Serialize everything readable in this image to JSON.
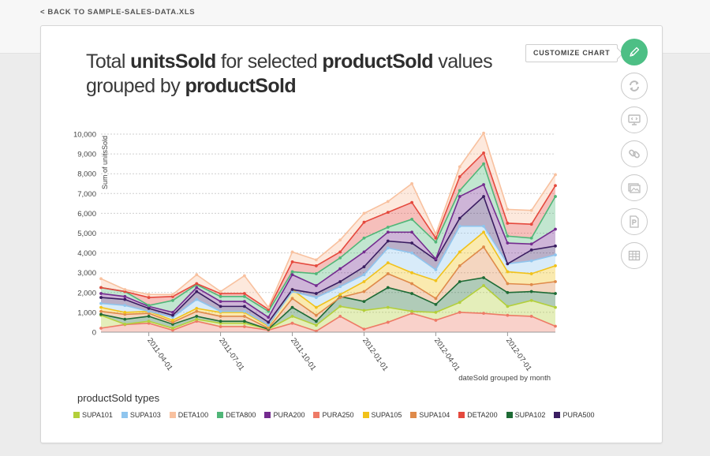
{
  "nav": {
    "back_label": "< BACK TO SAMPLE-SALES-DATA.XLS"
  },
  "title": {
    "p1": "Total ",
    "b1": "unitsSold",
    "p2": " for selected ",
    "b2": "productSold",
    "p3": " values grouped by ",
    "b3": "productSold"
  },
  "toolbar": {
    "customize_label": "CUSTOMIZE CHART",
    "buttons": [
      {
        "icon": "pencil-icon",
        "color": "#4dbf85"
      },
      {
        "icon": "refresh-icon"
      },
      {
        "icon": "embed-icon"
      },
      {
        "icon": "link-icon"
      },
      {
        "icon": "image-icon"
      },
      {
        "icon": "pdf-icon"
      },
      {
        "icon": "table-icon"
      }
    ]
  },
  "chart_data": {
    "type": "area",
    "stacked": true,
    "ylabel": "Sum of unitsSold",
    "xlabel": "dateSold grouped by month",
    "ylim": [
      0,
      10000
    ],
    "yticks": [
      "0",
      "1,000",
      "2,000",
      "3,000",
      "4,000",
      "5,000",
      "6,000",
      "7,000",
      "8,000",
      "9,000",
      "10,000"
    ],
    "xticks": [
      {
        "label": "2011-04-01",
        "index": 2
      },
      {
        "label": "2011-07-01",
        "index": 5
      },
      {
        "label": "2011-10-01",
        "index": 8
      },
      {
        "label": "2012-01-01",
        "index": 11
      },
      {
        "label": "2012-04-01",
        "index": 14
      },
      {
        "label": "2012-07-01",
        "index": 17
      }
    ],
    "grid": true,
    "legend_title": "productSold types",
    "legend_position": "bottom",
    "x": [
      "2011-02",
      "2011-03",
      "2011-04",
      "2011-05",
      "2011-06",
      "2011-07",
      "2011-08",
      "2011-09",
      "2011-10",
      "2011-11",
      "2011-12",
      "2012-01",
      "2012-02",
      "2012-03",
      "2012-04",
      "2012-05",
      "2012-06",
      "2012-07",
      "2012-08",
      "2012-09"
    ],
    "series": [
      {
        "name": "PURA250",
        "color": "#ee7a66",
        "totals": [
          200,
          380,
          450,
          100,
          550,
          280,
          280,
          100,
          450,
          50,
          800,
          150,
          500,
          950,
          600,
          1000,
          950,
          850,
          800,
          300
        ]
      },
      {
        "name": "SUPA101",
        "color": "#b3cf3a",
        "totals": [
          850,
          400,
          550,
          200,
          650,
          450,
          450,
          150,
          800,
          350,
          1300,
          1100,
          1250,
          1050,
          1000,
          1500,
          2350,
          1300,
          1600,
          1250
        ]
      },
      {
        "name": "SUPA102",
        "color": "#1e6b35",
        "totals": [
          900,
          650,
          800,
          400,
          800,
          550,
          550,
          150,
          1250,
          550,
          1800,
          1550,
          2250,
          1950,
          1400,
          2550,
          2750,
          2000,
          2050,
          1950
        ]
      },
      {
        "name": "SUPA104",
        "color": "#df8a4a",
        "totals": [
          1050,
          900,
          950,
          500,
          1050,
          800,
          800,
          200,
          1700,
          850,
          1750,
          2050,
          2950,
          2450,
          1700,
          3350,
          4300,
          2450,
          2400,
          2550
        ]
      },
      {
        "name": "SUPA105",
        "color": "#f1c21a",
        "totals": [
          1250,
          1000,
          1050,
          600,
          1200,
          1000,
          1000,
          300,
          2150,
          1250,
          1900,
          2550,
          3500,
          3000,
          2600,
          4050,
          5050,
          3050,
          2950,
          3350
        ]
      },
      {
        "name": "SUPA103",
        "color": "#8fc5ee",
        "totals": [
          1450,
          1350,
          1050,
          750,
          1650,
          1050,
          1050,
          350,
          2050,
          1750,
          2300,
          2900,
          4250,
          4000,
          3150,
          5350,
          5350,
          3450,
          3600,
          3900
        ]
      },
      {
        "name": "PURA500",
        "color": "#3a1d61",
        "totals": [
          1750,
          1650,
          1200,
          850,
          2050,
          1300,
          1300,
          500,
          2150,
          1950,
          2550,
          3300,
          4600,
          4500,
          3650,
          5750,
          6850,
          3450,
          4150,
          4350
        ]
      },
      {
        "name": "PURA200",
        "color": "#742b8f",
        "totals": [
          1950,
          1800,
          1300,
          1000,
          2250,
          1550,
          1550,
          750,
          2900,
          2350,
          3200,
          4050,
          5050,
          5050,
          3700,
          6850,
          7450,
          4500,
          4450,
          5200
        ]
      },
      {
        "name": "DETA800",
        "color": "#50b678",
        "totals": [
          2250,
          2050,
          1350,
          1600,
          2400,
          1800,
          1800,
          1050,
          3050,
          2950,
          3750,
          4750,
          5300,
          5700,
          4550,
          7150,
          8500,
          4850,
          4750,
          6850
        ]
      },
      {
        "name": "DETA200",
        "color": "#e5493d",
        "totals": [
          2250,
          2050,
          1750,
          1800,
          2450,
          1950,
          1950,
          1150,
          3550,
          3350,
          4050,
          5550,
          6050,
          6550,
          4750,
          7850,
          9050,
          5500,
          5450,
          7400
        ]
      },
      {
        "name": "DETA100",
        "color": "#f8c19f",
        "totals": [
          2700,
          2150,
          1900,
          1900,
          2900,
          2050,
          2850,
          1250,
          4050,
          3650,
          4650,
          6000,
          6600,
          7500,
          4950,
          8350,
          10050,
          6200,
          6150,
          7950
        ]
      }
    ],
    "legend_order": [
      "SUPA101",
      "SUPA103",
      "DETA100",
      "DETA800",
      "PURA200",
      "PURA250",
      "SUPA105",
      "SUPA104",
      "DETA200",
      "SUPA102",
      "PURA500"
    ]
  }
}
